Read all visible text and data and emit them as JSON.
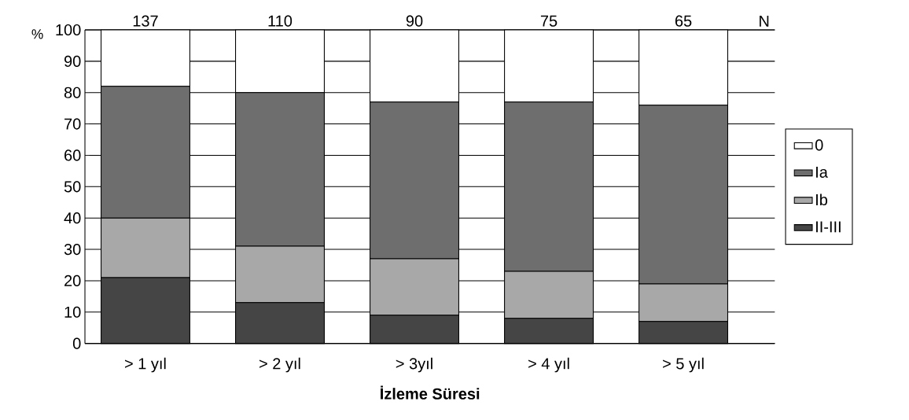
{
  "chart_data": {
    "type": "bar",
    "stacked": true,
    "categories": [
      "> 1 yıl",
      "> 2 yıl",
      "> 3yıl",
      "> 4 yıl",
      "> 5 yıl"
    ],
    "series": [
      {
        "name": "II-III",
        "color": "#454545",
        "values": [
          21,
          13,
          9,
          8,
          7
        ]
      },
      {
        "name": "Ib",
        "color": "#a8a8a8",
        "values": [
          19,
          18,
          18,
          15,
          12
        ]
      },
      {
        "name": "Ia",
        "color": "#6e6e6e",
        "values": [
          42,
          49,
          50,
          54,
          57
        ]
      },
      {
        "name": "0",
        "color": "#ffffff",
        "values": [
          18,
          20,
          23,
          23,
          24
        ]
      }
    ],
    "ylim": [
      0,
      100
    ],
    "yticks": [
      0,
      10,
      20,
      30,
      40,
      50,
      60,
      70,
      80,
      90,
      100
    ],
    "ylabel": "%",
    "xlabel": "İzleme Süresi",
    "annotations": [
      "137",
      "110",
      "90",
      "75",
      "65",
      "N"
    ],
    "grid": "y",
    "legend": "right"
  }
}
